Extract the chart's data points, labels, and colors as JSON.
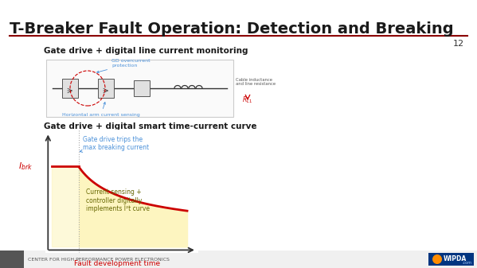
{
  "title": "T-Breaker Fault Operation: Detection and Breaking",
  "slide_number": "12",
  "bg_color": "#FFFFFF",
  "title_color": "#1a1a1a",
  "title_fontsize": 14,
  "accent_color_dark": "#8B0000",
  "accent_color_red": "#cc0000",
  "section1_label": "Gate drive + digital line current monitoring",
  "section2_label": "Gate drive + digital smart time-current curve",
  "footer_text": "CENTER FOR HIGH PERFORMANCE POWER ELECTRONICS",
  "annotation1": "Gate drive trips the\nmax breaking current",
  "annotation2": "Current sensing +\ncontroller digitally\nimplements I²t curve",
  "xlabel": "Fault development time",
  "curve_color": "#cc0000",
  "fill_color": "#fdf5c0",
  "annotation_color1": "#4a90d9",
  "axis_color": "#333333"
}
